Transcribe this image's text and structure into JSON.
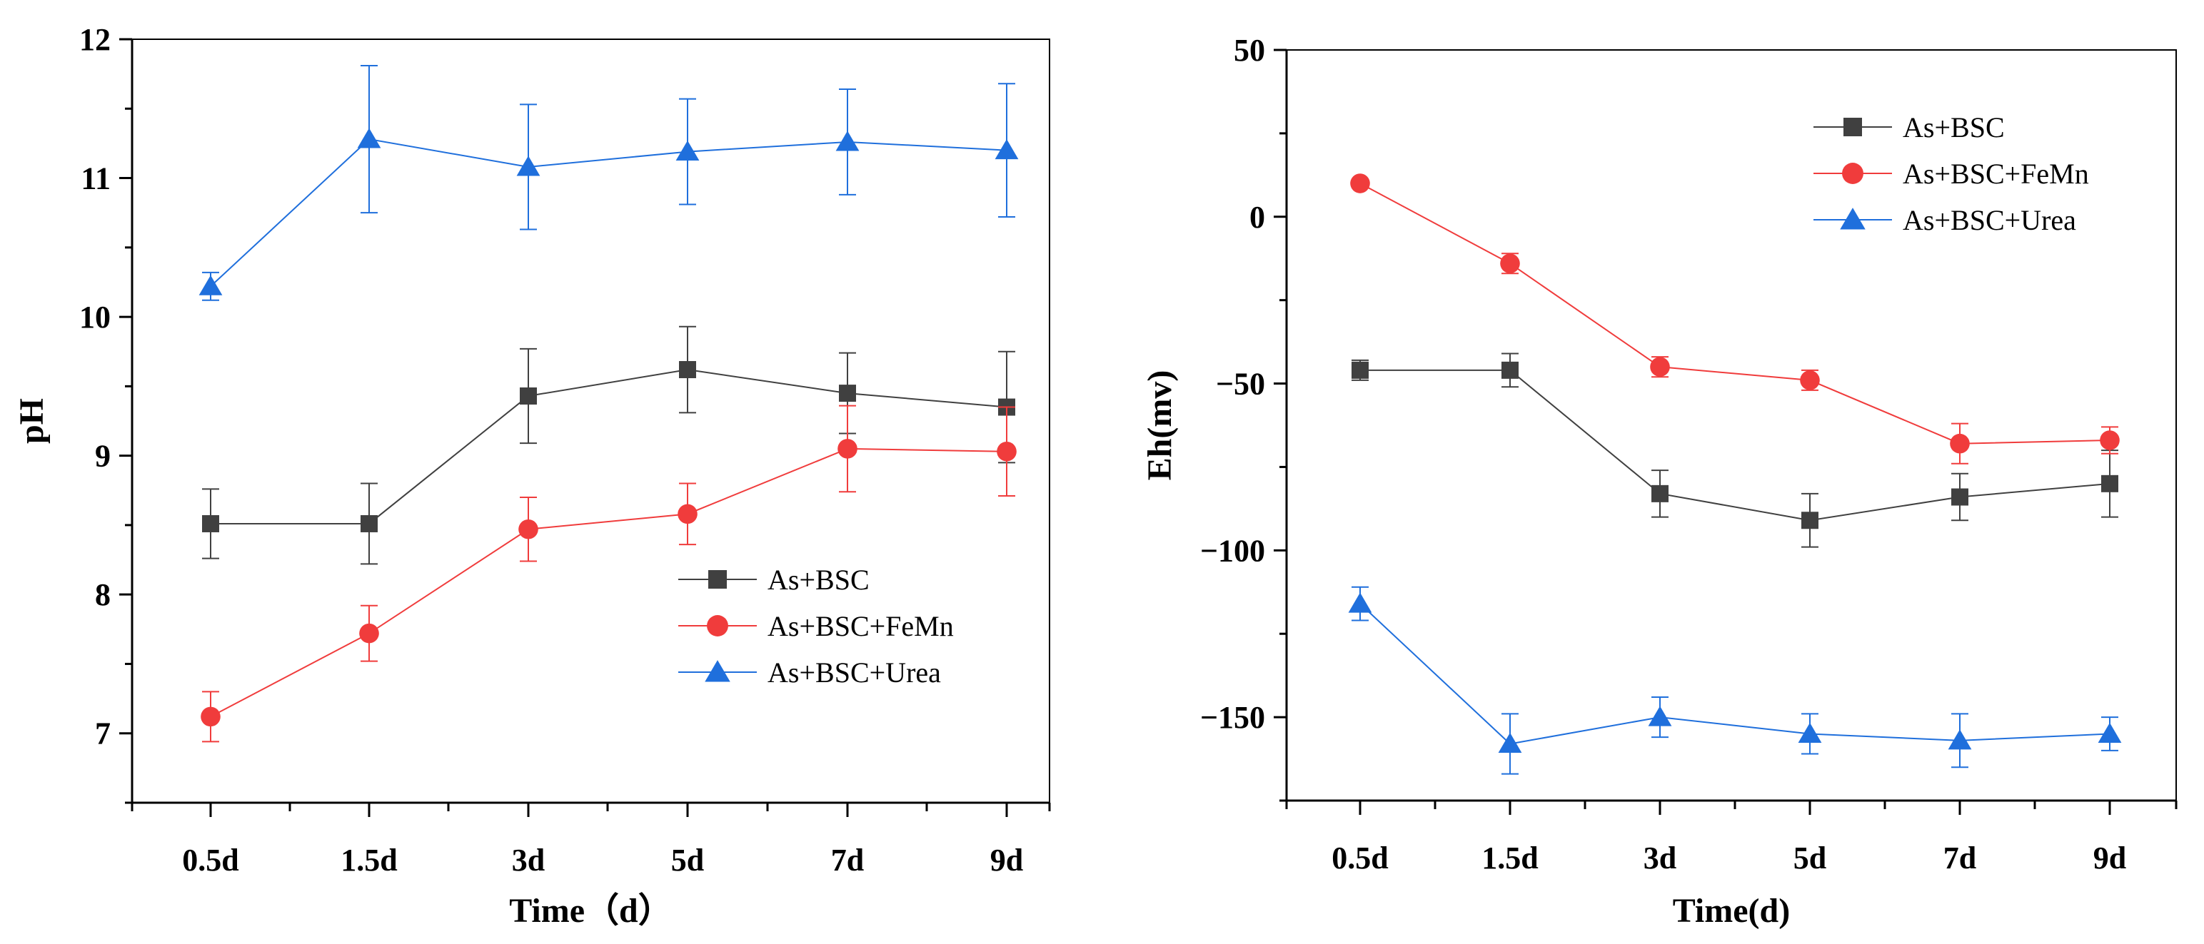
{
  "chart_data": [
    {
      "type": "line",
      "panel": "left",
      "title": "",
      "xlabel": "Time（d）",
      "ylabel": "pH",
      "categories": [
        "0.5d",
        "1.5d",
        "3d",
        "5d",
        "7d",
        "9d"
      ],
      "ylim": [
        6.5,
        12
      ],
      "yticks": [
        7,
        8,
        9,
        10,
        11,
        12
      ],
      "legend_position": "center-right",
      "series": [
        {
          "name": "As+BSC",
          "color": "#404040",
          "marker": "square",
          "values": [
            8.51,
            8.51,
            9.43,
            9.62,
            9.45,
            9.35
          ],
          "errors": [
            0.25,
            0.29,
            0.34,
            0.31,
            0.29,
            0.4
          ]
        },
        {
          "name": "As+BSC+FeMn",
          "color": "#f03c3c",
          "marker": "circle",
          "values": [
            7.12,
            7.72,
            8.47,
            8.58,
            9.05,
            9.03
          ],
          "errors": [
            0.18,
            0.2,
            0.23,
            0.22,
            0.31,
            0.32
          ]
        },
        {
          "name": "As+BSC+Urea",
          "color": "#1f6fdc",
          "marker": "triangle",
          "values": [
            10.22,
            11.28,
            11.08,
            11.19,
            11.26,
            11.2
          ],
          "errors": [
            0.1,
            0.53,
            0.45,
            0.38,
            0.38,
            0.48
          ]
        }
      ]
    },
    {
      "type": "line",
      "panel": "right",
      "title": "",
      "xlabel": "Time(d)",
      "ylabel": "Eh(mv)",
      "categories": [
        "0.5d",
        "1.5d",
        "3d",
        "5d",
        "7d",
        "9d"
      ],
      "ylim": [
        -175,
        50
      ],
      "yticks": [
        -150,
        -100,
        -50,
        0,
        50
      ],
      "ytick_labels": [
        "−150",
        "−100",
        "−50",
        "0",
        "50"
      ],
      "legend_position": "top-right",
      "series": [
        {
          "name": "As+BSC",
          "color": "#404040",
          "marker": "square",
          "values": [
            -46,
            -46,
            -83,
            -91,
            -84,
            -80
          ],
          "errors": [
            3,
            5,
            7,
            8,
            7,
            10
          ]
        },
        {
          "name": "As+BSC+FeMn",
          "color": "#f03c3c",
          "marker": "circle",
          "values": [
            10,
            -14,
            -45,
            -49,
            -68,
            -67
          ],
          "errors": [
            1,
            3,
            3,
            3,
            6,
            4
          ]
        },
        {
          "name": "As+BSC+Urea",
          "color": "#1f6fdc",
          "marker": "triangle",
          "values": [
            -116,
            -158,
            -150,
            -155,
            -157,
            -155
          ],
          "errors": [
            5,
            9,
            6,
            6,
            8,
            5
          ]
        }
      ]
    }
  ]
}
